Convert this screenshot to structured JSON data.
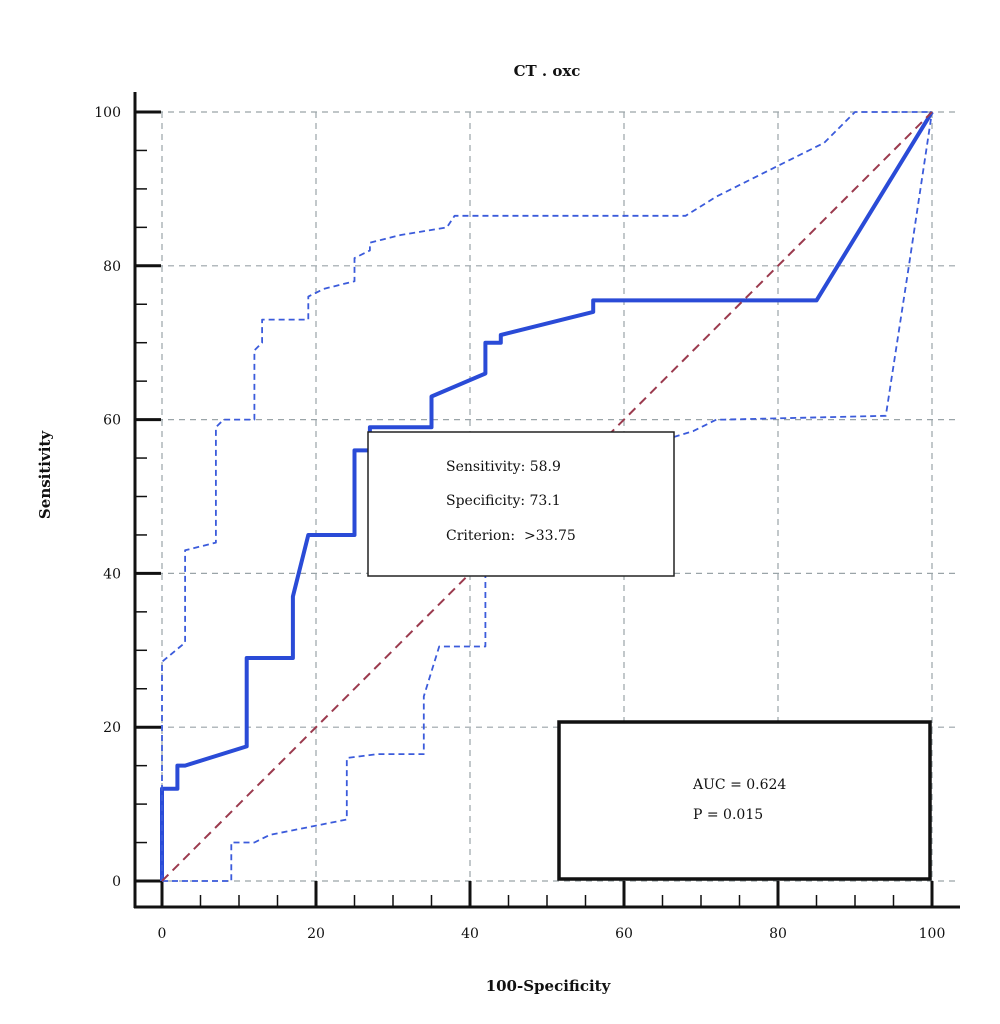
{
  "chart_data": {
    "type": "line",
    "title": "CT . oxc",
    "xlabel": "100-Specificity",
    "ylabel": "Sensitivity",
    "xlim": [
      0,
      100
    ],
    "ylim": [
      0,
      100
    ],
    "xticks": [
      "0",
      "20",
      "40",
      "60",
      "80",
      "100"
    ],
    "yticks": [
      "0",
      "20",
      "40",
      "60",
      "80",
      "100"
    ],
    "grid": true,
    "series": [
      {
        "role": "roc-curve",
        "style": "solid",
        "color": "#2a4bd7",
        "points": [
          [
            0,
            0
          ],
          [
            0,
            12
          ],
          [
            2,
            12
          ],
          [
            2,
            15
          ],
          [
            3,
            15
          ],
          [
            11,
            17.5
          ],
          [
            11,
            29
          ],
          [
            17,
            29
          ],
          [
            17,
            37
          ],
          [
            19,
            45
          ],
          [
            25,
            45
          ],
          [
            25,
            56
          ],
          [
            27,
            56
          ],
          [
            27,
            59
          ],
          [
            35,
            59
          ],
          [
            35,
            63
          ],
          [
            42,
            66
          ],
          [
            42,
            70
          ],
          [
            44,
            70
          ],
          [
            44,
            71
          ],
          [
            56,
            74
          ],
          [
            56,
            75.5
          ],
          [
            85,
            75.5
          ],
          [
            100,
            100
          ]
        ]
      },
      {
        "role": "upper-confidence-bound",
        "style": "dashed",
        "color": "#3b5bdb",
        "points": [
          [
            0,
            0
          ],
          [
            0,
            28.5
          ],
          [
            3,
            31
          ],
          [
            3,
            43
          ],
          [
            7,
            44
          ],
          [
            7,
            59
          ],
          [
            8,
            60
          ],
          [
            12,
            60
          ],
          [
            12,
            69
          ],
          [
            13,
            70
          ],
          [
            13,
            73
          ],
          [
            19,
            73
          ],
          [
            19,
            76
          ],
          [
            21,
            77
          ],
          [
            25,
            78
          ],
          [
            25,
            81
          ],
          [
            27,
            82
          ],
          [
            27,
            83
          ],
          [
            31,
            84
          ],
          [
            37,
            85
          ],
          [
            38,
            86.5
          ],
          [
            68,
            86.5
          ],
          [
            72,
            89
          ],
          [
            80,
            93
          ],
          [
            86,
            96
          ],
          [
            90,
            100
          ],
          [
            100,
            100
          ]
        ]
      },
      {
        "role": "lower-confidence-bound",
        "style": "dashed",
        "color": "#3b5bdb",
        "points": [
          [
            0,
            0
          ],
          [
            9,
            0
          ],
          [
            9,
            5
          ],
          [
            12,
            5
          ],
          [
            14,
            6
          ],
          [
            24,
            8
          ],
          [
            24,
            16
          ],
          [
            28,
            16.5
          ],
          [
            34,
            16.5
          ],
          [
            34,
            24
          ],
          [
            36,
            30.5
          ],
          [
            41,
            30.5
          ],
          [
            42,
            30.5
          ],
          [
            42,
            44
          ],
          [
            45,
            44
          ],
          [
            45,
            55
          ],
          [
            46,
            56
          ],
          [
            48,
            56
          ],
          [
            48,
            57
          ],
          [
            64,
            57
          ],
          [
            69,
            58.5
          ],
          [
            72,
            60
          ],
          [
            73,
            60
          ],
          [
            94,
            60.5
          ],
          [
            97,
            80
          ],
          [
            100,
            100
          ]
        ]
      },
      {
        "role": "reference-diagonal",
        "style": "dashed",
        "color": "#9b3a4e",
        "points": [
          [
            0,
            0
          ],
          [
            100,
            100
          ]
        ]
      }
    ],
    "annotations": {
      "criterion_box": {
        "sensitivity": "Sensitivity: 58.9",
        "specificity": "Specificity: 73.1",
        "criterion": "Criterion:  >33.75"
      },
      "auc_box": {
        "auc": "AUC = 0.624",
        "p": "P = 0.015"
      }
    }
  }
}
